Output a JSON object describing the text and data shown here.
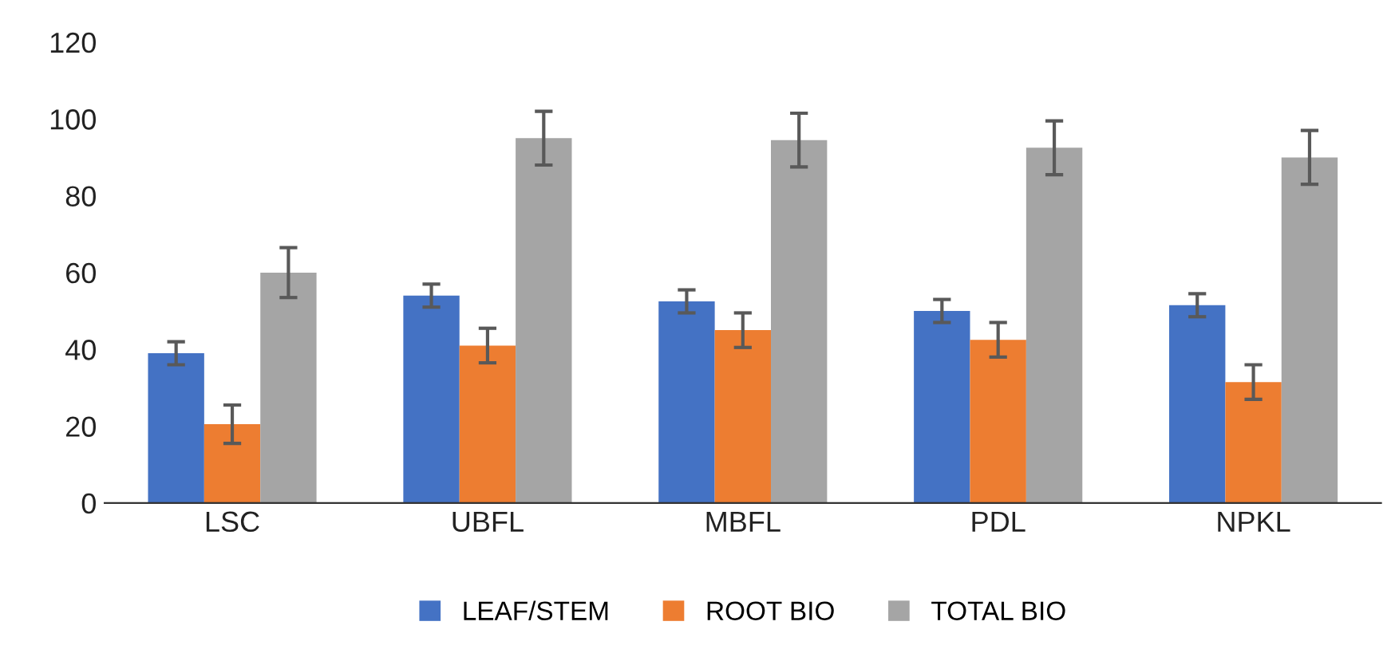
{
  "chart_data": {
    "type": "bar",
    "categories": [
      "LSC",
      "UBFL",
      "MBFL",
      "PDL",
      "NPKL"
    ],
    "series": [
      {
        "name": "LEAF/STEM",
        "color": "#4472c4",
        "values": [
          39,
          54,
          52.5,
          50,
          51.5
        ],
        "errors": [
          3,
          3,
          3,
          3,
          3
        ]
      },
      {
        "name": "ROOT BIO",
        "color": "#ed7d31",
        "values": [
          20.5,
          41,
          45,
          42.5,
          31.5
        ],
        "errors": [
          5,
          4.5,
          4.5,
          4.5,
          4.5
        ]
      },
      {
        "name": "TOTAL BIO",
        "color": "#a5a5a5",
        "values": [
          60,
          95,
          94.5,
          92.5,
          90
        ],
        "errors": [
          6.5,
          7,
          7,
          7,
          7
        ]
      }
    ],
    "ylim": [
      0,
      120
    ],
    "yticks": [
      0,
      20,
      40,
      60,
      80,
      100,
      120
    ],
    "grid": false,
    "legend": "bottom"
  }
}
